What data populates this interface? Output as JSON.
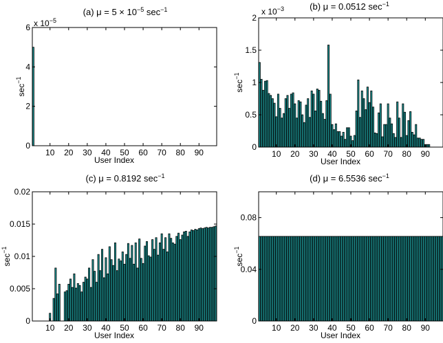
{
  "colors": {
    "bar_fill": "#1e9a9a",
    "bar_edge": "#000000"
  },
  "chart_data": [
    {
      "type": "bar",
      "title": "(a) μ = 5 × 10",
      "title_sup_exp": "−5",
      "title_unit": " sec",
      "title_unit_sup": "−1",
      "ylabel": "sec",
      "ylabel_sup": "−1",
      "xlabel": "User Index",
      "ylim": [
        0,
        6e-05
      ],
      "y_ticks": [
        0,
        2e-05,
        4e-05,
        6e-05
      ],
      "y_tick_labels": [
        "0",
        "2",
        "4",
        "6"
      ],
      "y_multiplier": "x 10",
      "y_multiplier_exp": "−5",
      "x_ticks": [
        10,
        20,
        30,
        40,
        50,
        60,
        70,
        80,
        90
      ],
      "x_tick_labels": [
        "10",
        "20",
        "30",
        "40",
        "50",
        "60",
        "70",
        "80",
        "90"
      ],
      "x": [
        1
      ],
      "values": [
        5e-05
      ]
    },
    {
      "type": "bar",
      "title": "(b) μ = 0.0512 sec",
      "title_sup_exp": "",
      "title_unit": "",
      "title_unit_sup": "−1",
      "ylabel": "sec",
      "ylabel_sup": "−1",
      "xlabel": "User Index",
      "ylim": [
        0,
        0.002
      ],
      "y_ticks": [
        0,
        0.0005,
        0.001,
        0.0015,
        0.002
      ],
      "y_tick_labels": [
        "0",
        "0.5",
        "1",
        "1.5",
        "2"
      ],
      "y_multiplier": "x 10",
      "y_multiplier_exp": "−3",
      "x_ticks": [
        10,
        20,
        30,
        40,
        50,
        60,
        70,
        80,
        90
      ],
      "x_tick_labels": [
        "10",
        "20",
        "30",
        "40",
        "50",
        "60",
        "70",
        "80",
        "90"
      ],
      "x_start": 1,
      "values": [
        0.00131,
        0.00105,
        0.00088,
        0.00102,
        0.00103,
        0.00083,
        0.0008,
        0.00075,
        0.00068,
        0.00047,
        0.00082,
        0.0006,
        0.00045,
        0.00052,
        0.00075,
        0.0008,
        0.0006,
        0.00082,
        0.00084,
        0.00067,
        0.00045,
        0.00072,
        0.0007,
        0.0005,
        0.00038,
        0.00065,
        0.00075,
        0.00046,
        0.00087,
        0.00082,
        0.00056,
        0.0009,
        0.00088,
        0.00071,
        0.00052,
        0.00043,
        0.00072,
        0.00158,
        0.00082,
        0.00035,
        0.00027,
        0.00036,
        0.00024,
        0.00024,
        0.00017,
        0.00023,
        0.00012,
        0.0003,
        0.0003,
        0.00017,
        0.0001,
        0.00018,
        0.00056,
        0.00104,
        0.00046,
        0.00087,
        0.00075,
        0.00058,
        0.00093,
        0.00069,
        0.00087,
        0.00062,
        0.00022,
        0.00021,
        0.00053,
        0.00067,
        0.00016,
        0.00035,
        0.00035,
        0.00067,
        0.00045,
        0.00036,
        0.00021,
        0.00015,
        0.0007,
        0.00045,
        0.00015,
        0.00067,
        0.00054,
        0.00018,
        0.00041,
        0.00055,
        0.00023,
        0.00019,
        0.00035,
        0.00014,
        0.00014,
        0.00012,
        0.00012,
        4e-05,
        4e-05,
        4e-05,
        0,
        0,
        0,
        0,
        0,
        0,
        0
      ]
    },
    {
      "type": "bar",
      "title": "(c) μ = 0.8192 sec",
      "title_sup_exp": "",
      "title_unit": "",
      "title_unit_sup": "−1",
      "ylabel": "sec",
      "ylabel_sup": "−1",
      "xlabel": "User Index",
      "ylim": [
        0,
        0.02
      ],
      "y_ticks": [
        0,
        0.005,
        0.01,
        0.015,
        0.02
      ],
      "y_tick_labels": [
        "0",
        "0.005",
        "0.01",
        "0.015",
        "0.02"
      ],
      "y_multiplier": "",
      "y_multiplier_exp": "",
      "x_ticks": [
        10,
        20,
        30,
        40,
        50,
        60,
        70,
        80,
        90
      ],
      "x_tick_labels": [
        "10",
        "20",
        "30",
        "40",
        "50",
        "60",
        "70",
        "80",
        "90"
      ],
      "x_start": 1,
      "values": [
        0,
        0,
        0,
        0,
        0,
        0,
        0,
        0,
        0,
        0.0012,
        0,
        0.0035,
        0.0082,
        0.0042,
        0.0057,
        0,
        0,
        0.0045,
        0.0047,
        0.0057,
        0.0065,
        0.0052,
        0.0073,
        0.0051,
        0.0058,
        0.0055,
        0.0045,
        0.006,
        0.0068,
        0.0065,
        0.0082,
        0.0052,
        0.0095,
        0.0077,
        0.006,
        0.0103,
        0.0078,
        0.0111,
        0.0067,
        0.0098,
        0.0073,
        0.0115,
        0.0095,
        0.0086,
        0.0121,
        0.0078,
        0.0096,
        0.0093,
        0.0107,
        0.0088,
        0.0103,
        0.012,
        0.0097,
        0.0117,
        0.0088,
        0.0121,
        0.0082,
        0.0127,
        0.0097,
        0.0089,
        0.0116,
        0.0123,
        0.0101,
        0.0099,
        0.0126,
        0.0111,
        0.0129,
        0.0102,
        0.0121,
        0.0135,
        0.0111,
        0.0129,
        0.0107,
        0.0135,
        0.0128,
        0.0121,
        0.0119,
        0.0131,
        0.0136,
        0.0126,
        0.0133,
        0.0138,
        0.0139,
        0.0131,
        0.0138,
        0.0141,
        0.014,
        0.0142,
        0.0141,
        0.0143,
        0.0144,
        0.0143,
        0.0144,
        0.0145,
        0.0144,
        0.0145,
        0.0145,
        0.0146,
        0.0147
      ]
    },
    {
      "type": "bar",
      "title": "(d) μ = 6.5536 sec",
      "title_sup_exp": "",
      "title_unit": "",
      "title_unit_sup": "−1",
      "ylabel": "sec",
      "ylabel_sup": "−1",
      "xlabel": "User Index",
      "ylim": [
        0,
        0.1
      ],
      "y_ticks": [
        0,
        0.04,
        0.08
      ],
      "y_tick_labels": [
        "0",
        "0.04",
        "0.08"
      ],
      "y_multiplier": "",
      "y_multiplier_exp": "",
      "x_ticks": [
        10,
        20,
        30,
        40,
        50,
        60,
        70,
        80,
        90
      ],
      "x_tick_labels": [
        "10",
        "20",
        "30",
        "40",
        "50",
        "60",
        "70",
        "80",
        "90"
      ],
      "x_start": 1,
      "values": [
        0.0655,
        0.0655,
        0.0655,
        0.0655,
        0.0655,
        0.0655,
        0.0655,
        0.0655,
        0.0655,
        0.0655,
        0.0655,
        0.0655,
        0.0655,
        0.0655,
        0.0655,
        0.0655,
        0.0655,
        0.0655,
        0.0655,
        0.0655,
        0.0655,
        0.0655,
        0.0655,
        0.0655,
        0.0655,
        0.0655,
        0.0655,
        0.0655,
        0.0655,
        0.0655,
        0.0655,
        0.0655,
        0.0655,
        0.0655,
        0.0655,
        0.0655,
        0.0655,
        0.0655,
        0.0655,
        0.0655,
        0.0655,
        0.0655,
        0.0655,
        0.0655,
        0.0655,
        0.0655,
        0.0655,
        0.0655,
        0.0655,
        0.0655,
        0.0655,
        0.0655,
        0.0655,
        0.0655,
        0.0655,
        0.0655,
        0.0655,
        0.0655,
        0.0655,
        0.0655,
        0.0655,
        0.0655,
        0.0655,
        0.0655,
        0.0655,
        0.0655,
        0.0655,
        0.0655,
        0.0655,
        0.0655,
        0.0655,
        0.0655,
        0.0655,
        0.0655,
        0.0655,
        0.0655,
        0.0655,
        0.0655,
        0.0655,
        0.0655,
        0.0655,
        0.0655,
        0.0655,
        0.0655,
        0.0655,
        0.0655,
        0.0655,
        0.0655,
        0.0655,
        0.0655,
        0.0655,
        0.0655,
        0.0655,
        0.0655,
        0.0655,
        0.0655,
        0.0655,
        0.0655,
        0.0655
      ]
    }
  ]
}
